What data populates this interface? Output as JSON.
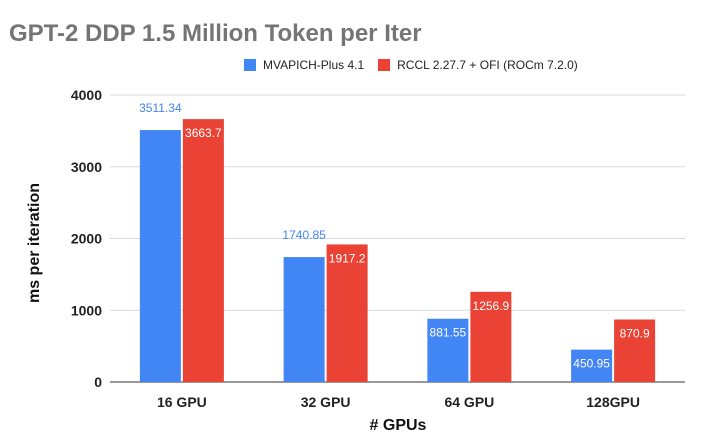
{
  "chart_data": {
    "type": "bar",
    "title": "GPT-2 DDP 1.5 Million Token per Iter",
    "xlabel": "# GPUs",
    "ylabel": "ms per iteration",
    "categories": [
      "16 GPU",
      "32 GPU",
      "64 GPU",
      "128GPU"
    ],
    "ylim": [
      0,
      4000
    ],
    "yticks": [
      0,
      1000,
      2000,
      3000,
      4000
    ],
    "grid": true,
    "legend_position": "top",
    "series": [
      {
        "name": "MVAPICH-Plus 4.1",
        "color": "#4285f4",
        "values": [
          3511.34,
          1740.85,
          881.55,
          450.95
        ],
        "labels": [
          "3511.34",
          "1740.85",
          "881.55",
          "450.95"
        ]
      },
      {
        "name": "RCCL 2.27.7 + OFI (ROCm 7.2.0)",
        "color": "#ea4335",
        "values": [
          3663.7,
          1917.2,
          1256.9,
          870.9
        ],
        "labels": [
          "3663.7",
          "1917.2",
          "1256.9",
          "870.9"
        ]
      }
    ]
  }
}
